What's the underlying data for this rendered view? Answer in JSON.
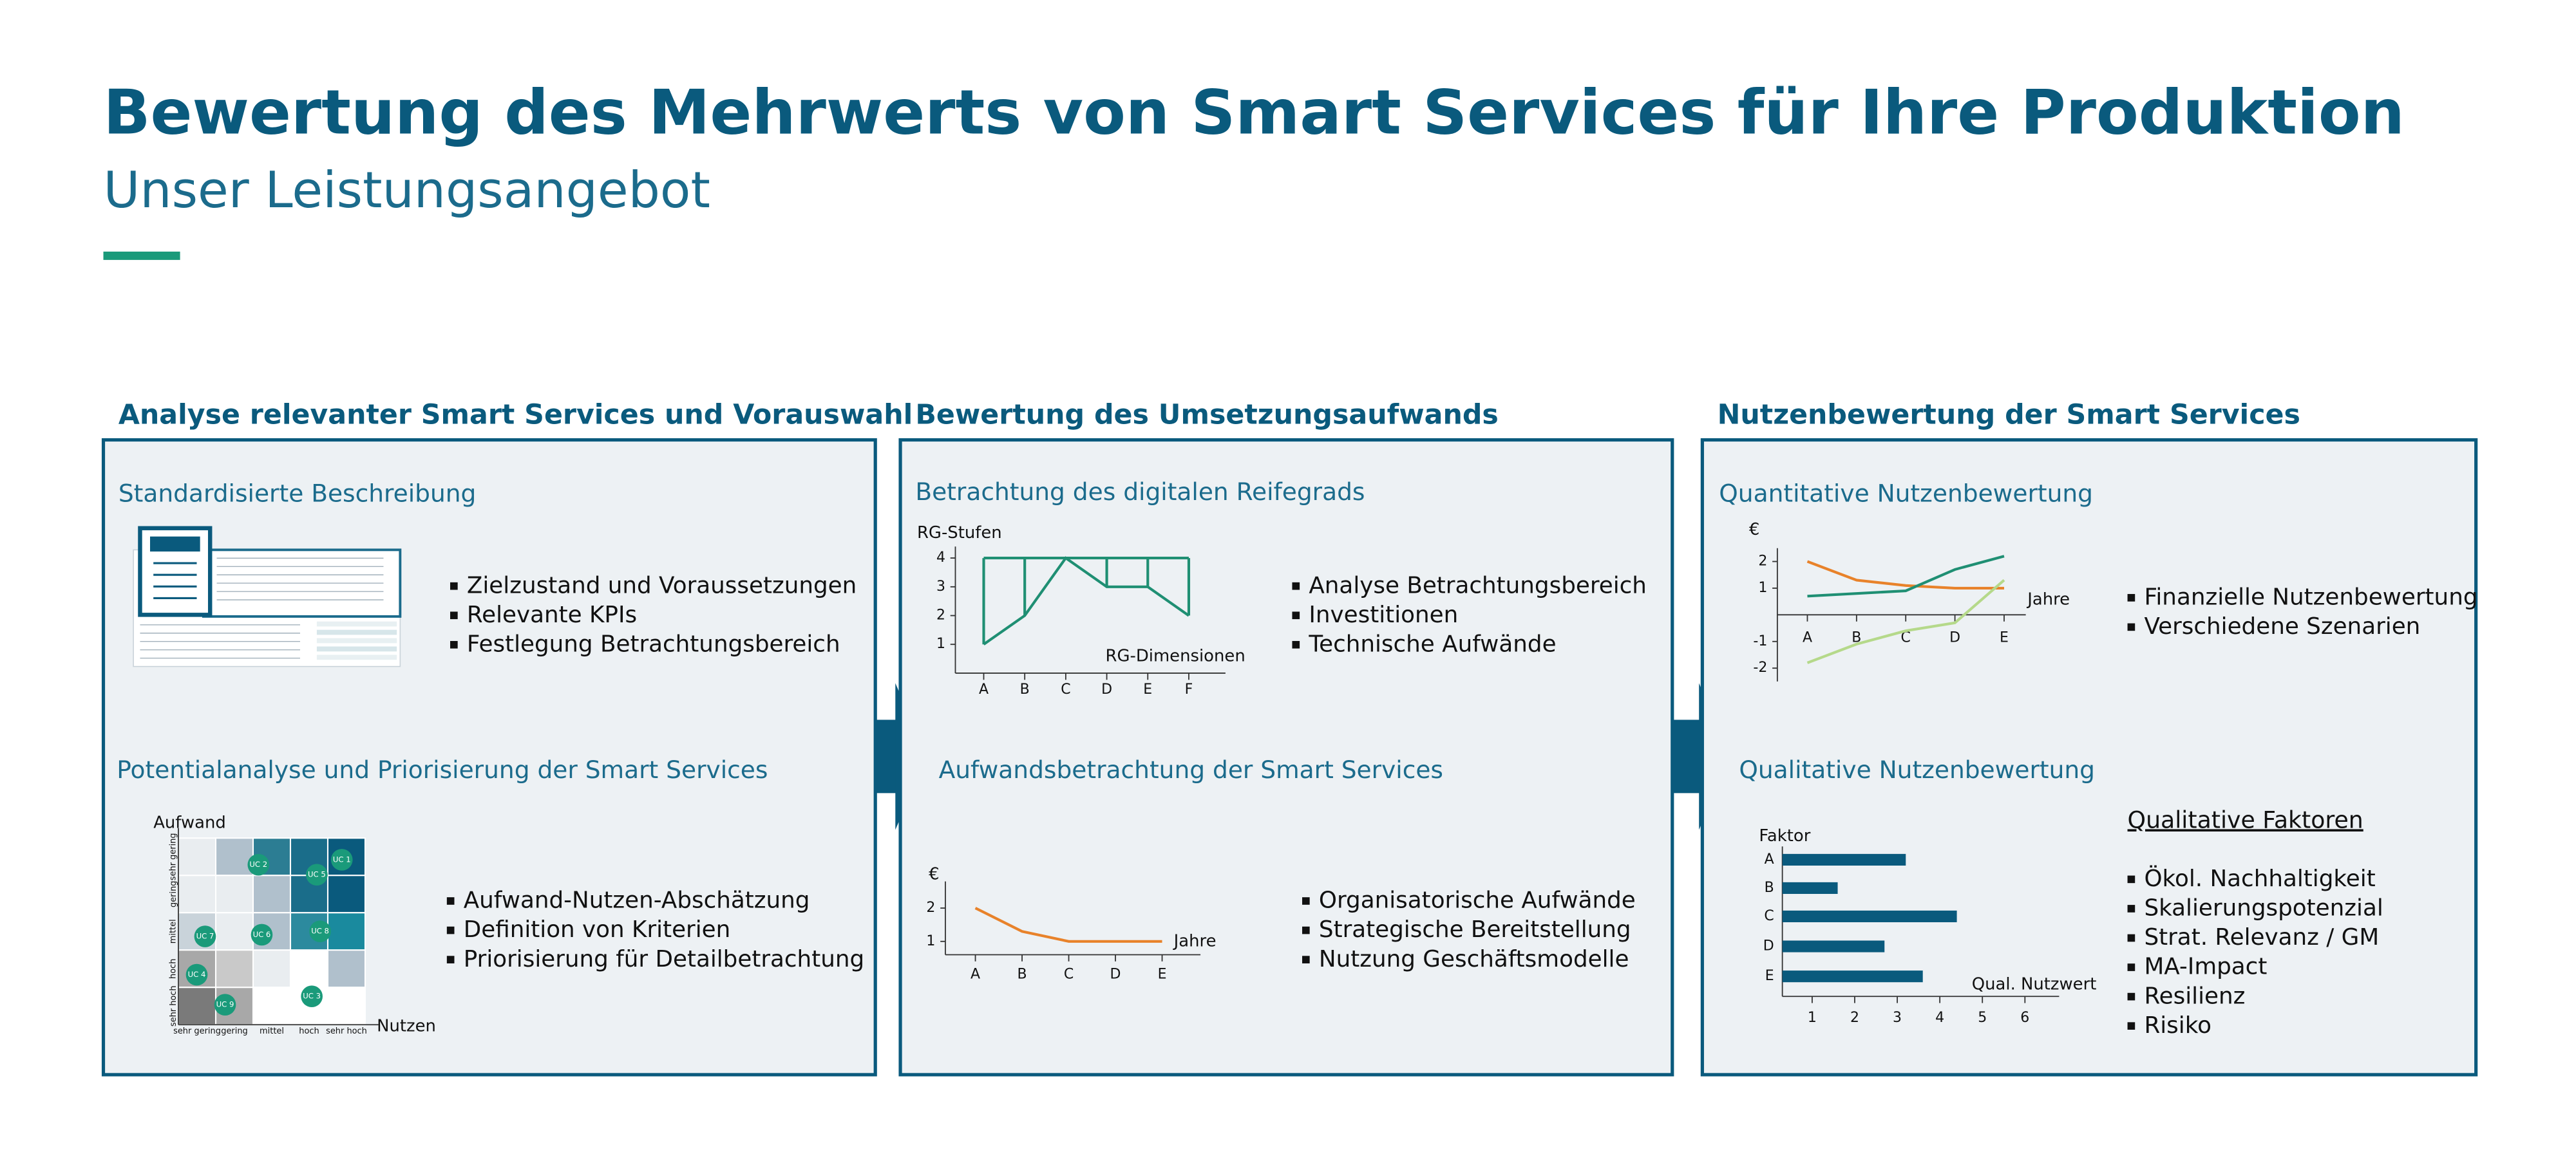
{
  "header": {
    "title": "Bewertung des Mehrwerts von Smart Services für Ihre Produktion",
    "subtitle": "Unser Leistungsangebot"
  },
  "panels": [
    {
      "heading": "Analyse relevanter Smart Services und Vorauswahl",
      "sections": [
        {
          "heading": "Standardisierte Beschreibung",
          "bullets": [
            "Zielzustand und Voraussetzungen",
            "Relevante KPIs",
            "Festlegung Betrachtungsbereich"
          ]
        },
        {
          "heading": "Potentialanalyse und Priorisierung der Smart Services",
          "bullets": [
            "Aufwand-Nutzen-Abschätzung",
            "Definition von Kriterien",
            "Priorisierung für Detailbetrachtung"
          ],
          "matrix": {
            "y_label": "Aufwand",
            "x_label": "Nutzen",
            "columns": [
              "sehr gering",
              "gering",
              "mittel",
              "hoch",
              "sehr hoch"
            ],
            "rows": [
              "sehr gering",
              "gering",
              "mittel",
              "hoch",
              "sehr hoch"
            ],
            "items": [
              "UC 1",
              "UC 2",
              "UC 5",
              "UC 7",
              "UC 6",
              "UC 8",
              "UC 4",
              "UC 9",
              "UC 3"
            ]
          }
        }
      ]
    },
    {
      "heading": "Bewertung des Umsetzungsaufwands",
      "sections": [
        {
          "heading": "Betrachtung des digitalen Reifegrads",
          "bullets": [
            "Analyse Betrachtungsbereich",
            "Investitionen",
            "Technische Aufwände"
          ],
          "chart": {
            "type": "line",
            "y_label": "RG-Stufen",
            "x_label": "RG-Dimensionen",
            "categories": [
              "A",
              "B",
              "C",
              "D",
              "E",
              "F"
            ],
            "ylim": [
              0,
              4.4
            ],
            "yticks": [
              1,
              2,
              3,
              4
            ],
            "series": [
              {
                "color": "#1f8f73",
                "values": [
                  4,
                  4,
                  4,
                  4,
                  4,
                  4
                ]
              },
              {
                "color": "#1f8f73",
                "values": [
                  1,
                  2,
                  4,
                  3,
                  3,
                  2
                ]
              }
            ],
            "connectors": true
          }
        },
        {
          "heading": "Aufwandsbetrachtung der Smart Services",
          "bullets": [
            "Organisatorische Aufwände",
            "Strategische Bereitstellung",
            "Nutzung Geschäftsmodelle"
          ],
          "chart": {
            "type": "line",
            "y_label": "€",
            "x_label": "Jahre",
            "categories": [
              "A",
              "B",
              "C",
              "D",
              "E"
            ],
            "ylim": [
              0.6,
              2.8
            ],
            "yticks": [
              1,
              2
            ],
            "series": [
              {
                "color": "#e8822a",
                "values": [
                  2,
                  1.3,
                  1,
                  1,
                  1
                ]
              }
            ]
          }
        }
      ]
    },
    {
      "heading": "Nutzenbewertung der Smart Services",
      "sections": [
        {
          "heading": "Quantitative Nutzenbewertung",
          "bullets": [
            "Finanzielle Nutzenbewertung",
            "Verschiedene Szenarien"
          ],
          "chart": {
            "type": "line",
            "y_label": "€",
            "x_label": "Jahre",
            "categories": [
              "A",
              "B",
              "C",
              "D",
              "E"
            ],
            "ylim": [
              -2.5,
              2.5
            ],
            "yticks": [
              -2,
              -1,
              1,
              2
            ],
            "series": [
              {
                "color": "#e8822a",
                "values": [
                  2,
                  1.3,
                  1.1,
                  1,
                  1
                ]
              },
              {
                "color": "#1f8f73",
                "values": [
                  0.7,
                  0.8,
                  0.9,
                  1.7,
                  2.2
                ]
              },
              {
                "color": "#b5d98a",
                "values": [
                  -1.8,
                  -1.1,
                  -0.6,
                  -0.3,
                  1.3
                ]
              }
            ]
          }
        },
        {
          "heading": "Qualitative Nutzenbewertung",
          "factors_heading": "Qualitative Faktoren",
          "bullets": [
            "Ökol. Nachhaltigkeit",
            "Skalierungspotenzial",
            "Strat. Relevanz / GM",
            "MA-Impact",
            "Resilienz",
            "Risiko"
          ],
          "chart": {
            "type": "hbar",
            "y_label": "Faktor",
            "x_label": "Qual. Nutzwert",
            "categories": [
              "A",
              "B",
              "C",
              "D",
              "E"
            ],
            "values": [
              3.2,
              1.6,
              4.4,
              2.7,
              3.6
            ],
            "color": "#0a5a7d",
            "xlim": [
              0.3,
              6.4
            ],
            "xticks": [
              1,
              2,
              3,
              4,
              5,
              6
            ]
          }
        }
      ]
    }
  ]
}
